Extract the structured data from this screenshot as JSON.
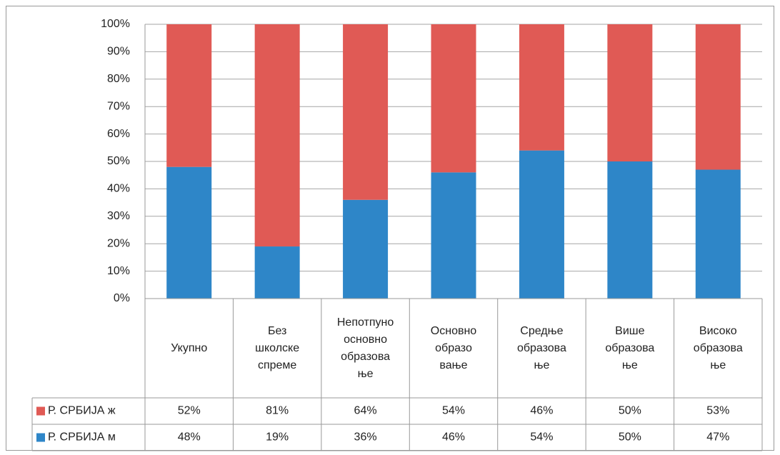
{
  "chart_data": {
    "type": "bar",
    "stacked": true,
    "categories": [
      "Укупно",
      "Без\nшколске\nспреме",
      "Непотпуно\nосновно\nобразова\nње",
      "Основно\nобразо\nвање",
      "Средње\nобразова\nње",
      "Више\nобразова\nње",
      "Високо\nобразова\nње"
    ],
    "series": [
      {
        "name": "Р. СРБИЈА ж",
        "color": "#e05a55",
        "values": [
          52,
          81,
          64,
          54,
          46,
          50,
          53
        ],
        "value_labels": [
          "52%",
          "81%",
          "64%",
          "54%",
          "46%",
          "50%",
          "53%"
        ]
      },
      {
        "name": "Р. СРБИЈА м",
        "color": "#2e86c8",
        "values": [
          48,
          19,
          36,
          46,
          54,
          50,
          47
        ],
        "value_labels": [
          "48%",
          "19%",
          "36%",
          "46%",
          "54%",
          "50%",
          "47%"
        ]
      }
    ],
    "ylim": [
      0,
      100
    ],
    "yticks": [
      {
        "value": 0,
        "label": "0%"
      },
      {
        "value": 10,
        "label": "10%"
      },
      {
        "value": 20,
        "label": "20%"
      },
      {
        "value": 30,
        "label": "30%"
      },
      {
        "value": 40,
        "label": "40%"
      },
      {
        "value": 50,
        "label": "50%"
      },
      {
        "value": 60,
        "label": "60%"
      },
      {
        "value": 70,
        "label": "70%"
      },
      {
        "value": 80,
        "label": "80%"
      },
      {
        "value": 90,
        "label": "90%"
      },
      {
        "value": 100,
        "label": "100%"
      }
    ],
    "grid": true
  }
}
